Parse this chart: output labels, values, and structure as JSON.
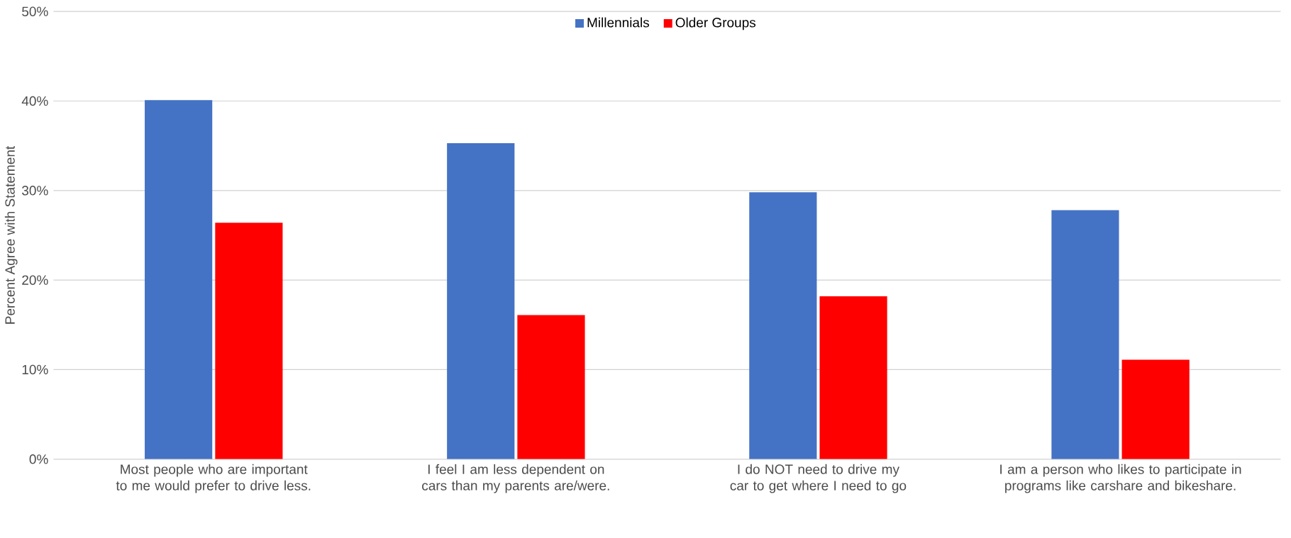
{
  "chart_data": {
    "type": "bar",
    "ylabel": "Percent Agree with Statement",
    "categories": [
      "Most people who are important to me would prefer to drive less.",
      "I feel I am less dependent on cars than my parents are/were.",
      "I do NOT need to drive my car to get where I need to go",
      "I am a person who likes to participate in programs like carshare and bikeshare."
    ],
    "series": [
      {
        "name": "Millennials",
        "color": "#4472c4",
        "values": [
          40.1,
          35.3,
          29.8,
          27.8
        ]
      },
      {
        "name": "Older Groups",
        "color": "#ff0000",
        "values": [
          26.4,
          16.1,
          18.2,
          11.1
        ]
      }
    ],
    "ylim": [
      0,
      50
    ],
    "yticks": [
      {
        "value": 0,
        "label": "0%"
      },
      {
        "value": 10,
        "label": "10%"
      },
      {
        "value": 20,
        "label": "20%"
      },
      {
        "value": 30,
        "label": "30%"
      },
      {
        "value": 40,
        "label": "40%"
      },
      {
        "value": 50,
        "label": "50%"
      }
    ],
    "grid": "y",
    "legend": "top"
  }
}
